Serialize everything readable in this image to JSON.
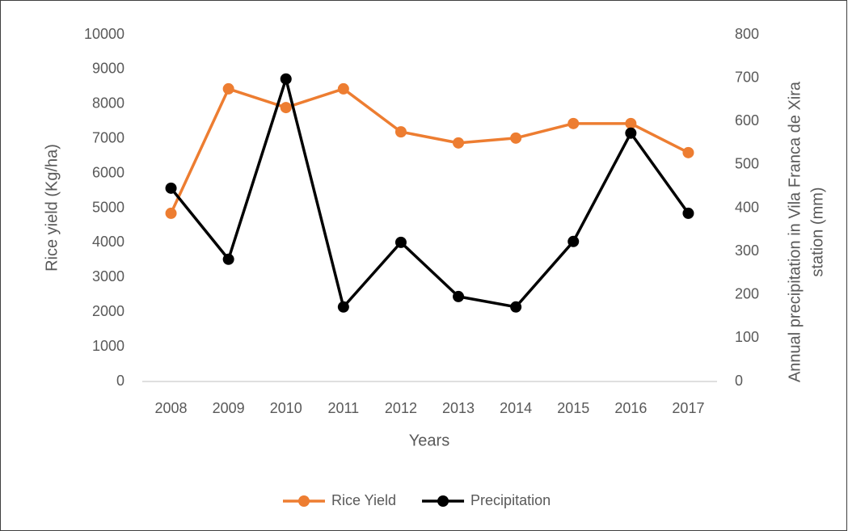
{
  "chart_data": {
    "type": "line",
    "categories": [
      "2008",
      "2009",
      "2010",
      "2011",
      "2012",
      "2013",
      "2014",
      "2015",
      "2016",
      "2017"
    ],
    "series": [
      {
        "name": "Rice Yield",
        "color": "#ed7d31",
        "values": [
          4850,
          8440,
          7900,
          8440,
          7200,
          6880,
          7020,
          7440,
          7440,
          6600
        ]
      },
      {
        "name": "Precipitation",
        "color": "#000000",
        "axis": "y2",
        "values": [
          446,
          282,
          698,
          172,
          321,
          196,
          172,
          323,
          573,
          388
        ]
      }
    ],
    "xlabel": "Years",
    "ylabel": "Rice yield (Kg/ha)",
    "y2label": [
      "Annual precipitation in Vila Franca de Xira",
      "station (mm)"
    ],
    "ylim": [
      0,
      10000
    ],
    "yticks": [
      0,
      1000,
      2000,
      3000,
      4000,
      5000,
      6000,
      7000,
      8000,
      9000,
      10000
    ],
    "y2lim": [
      0,
      800
    ],
    "y2ticks": [
      0,
      100,
      200,
      300,
      400,
      500,
      600,
      700,
      800
    ],
    "grid": false,
    "legend": "bottom"
  }
}
